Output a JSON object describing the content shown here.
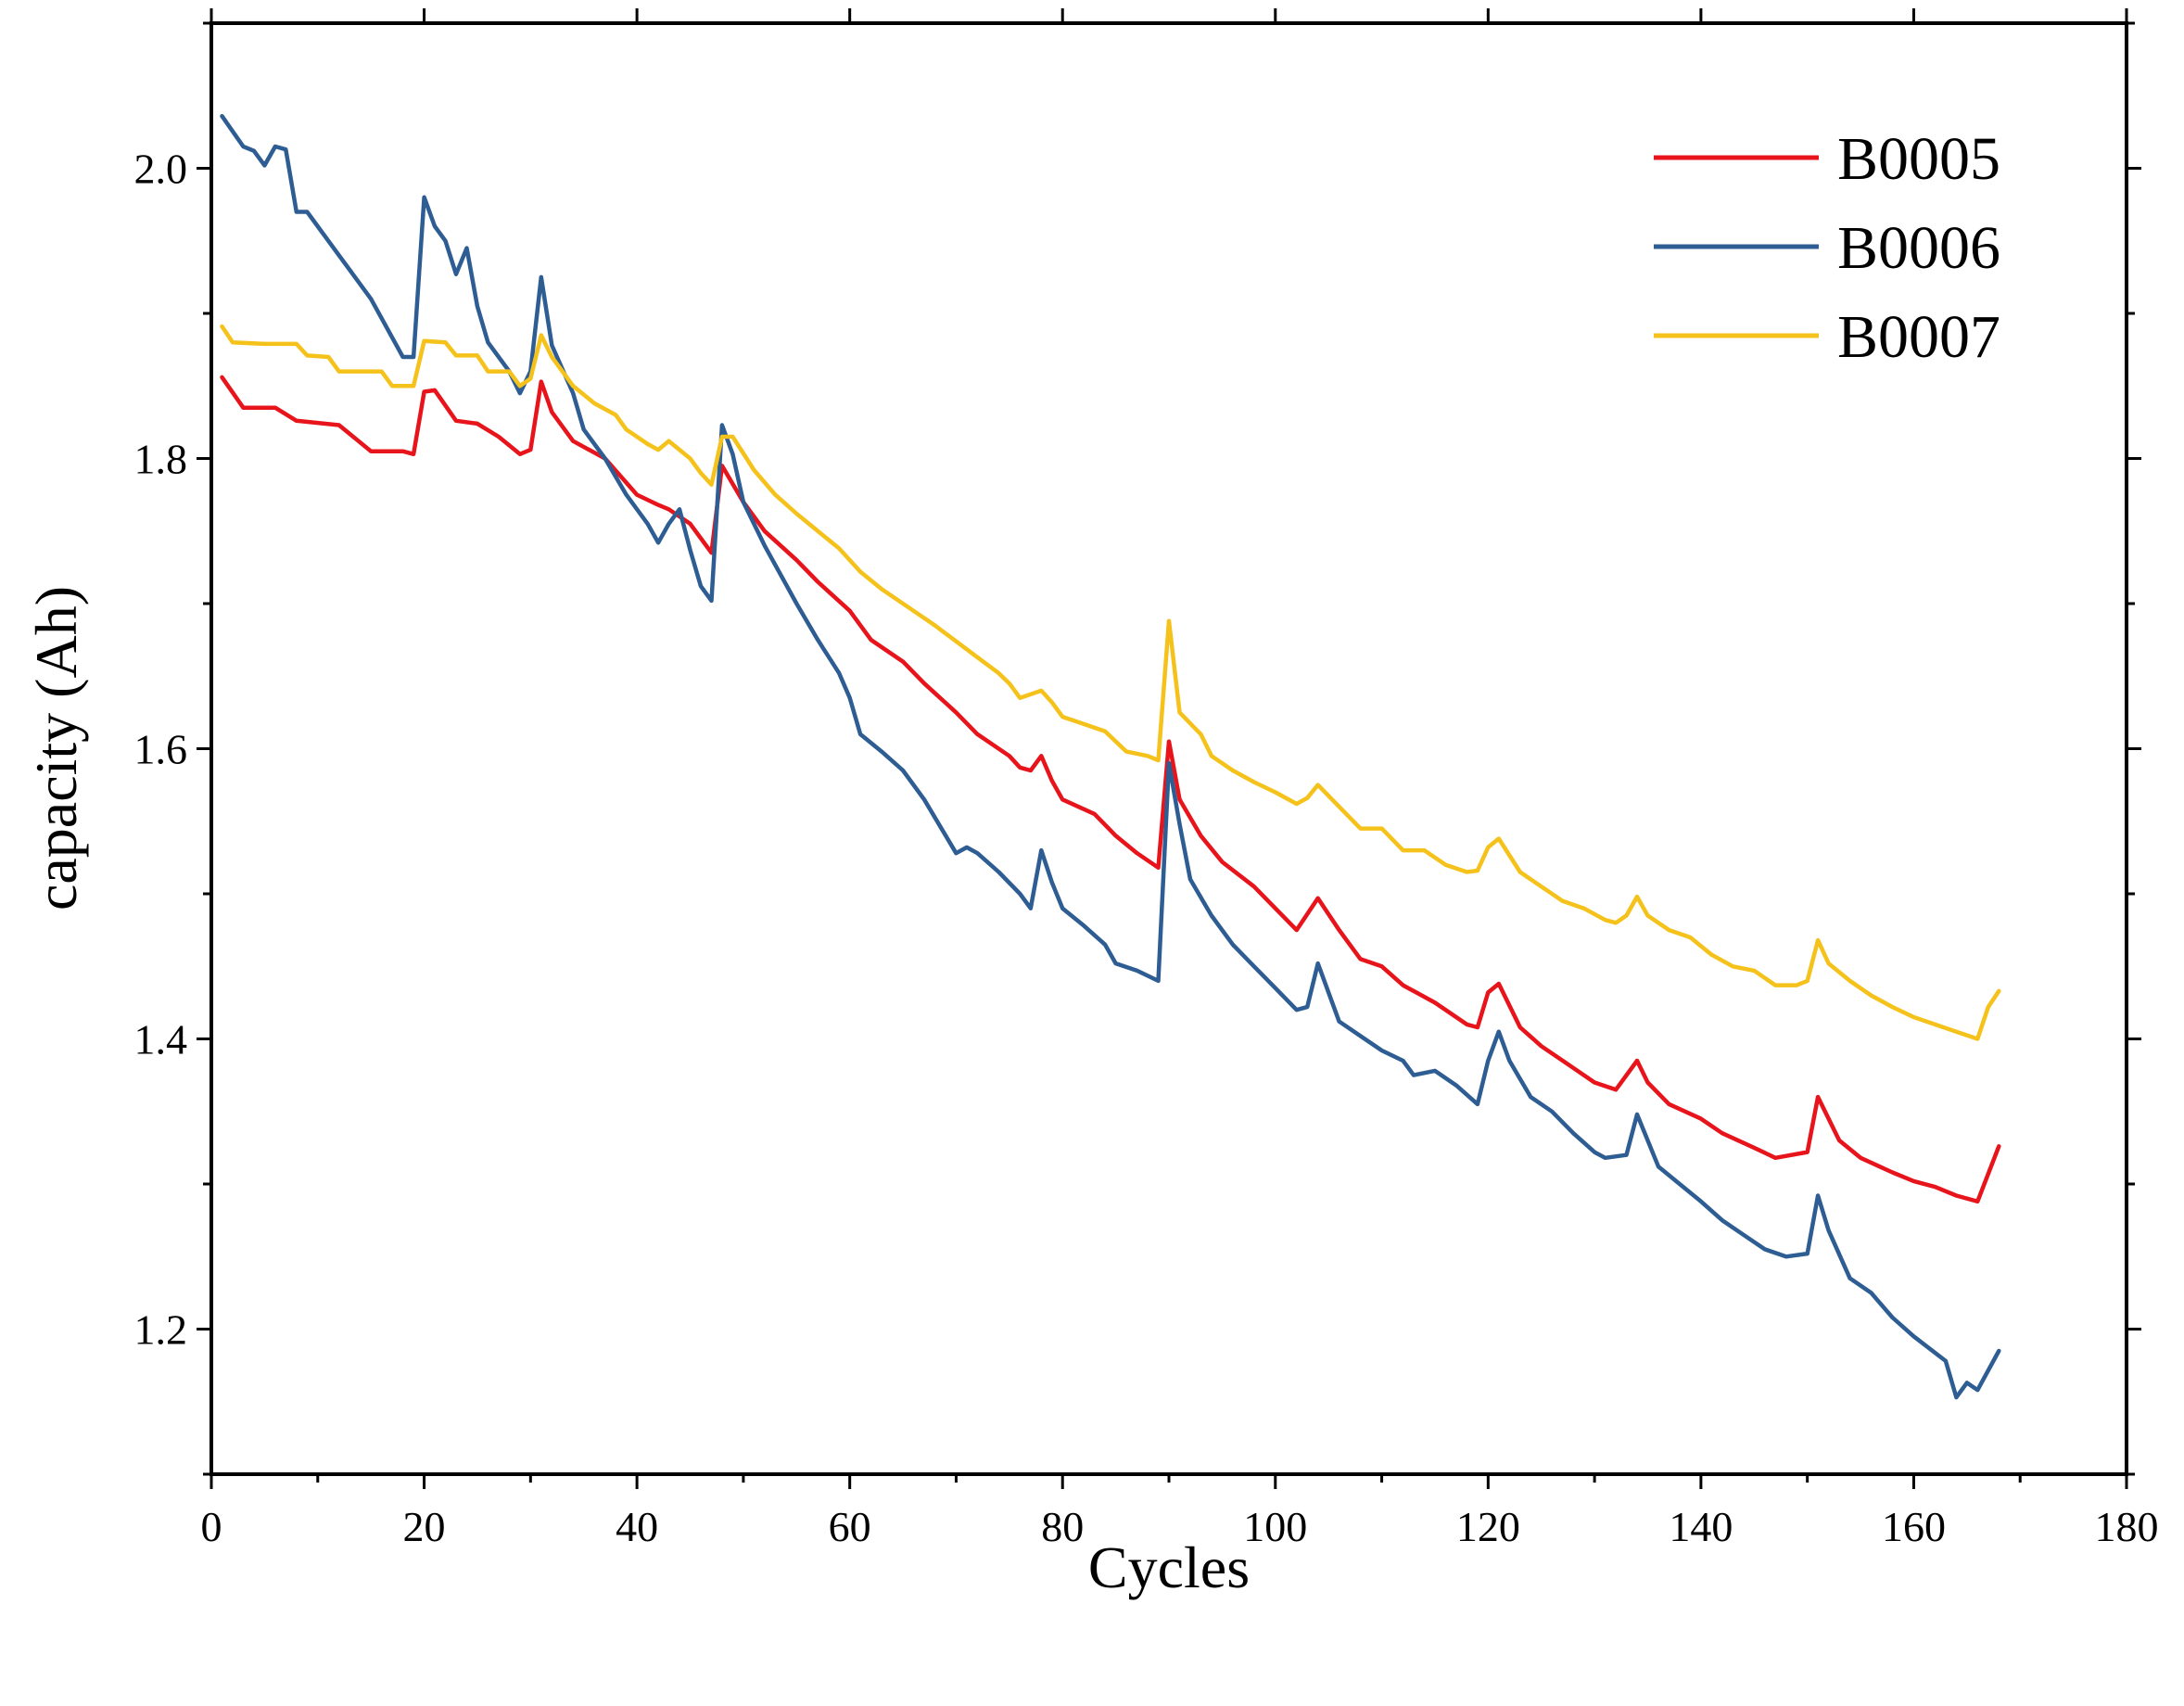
{
  "chart_data": {
    "type": "line",
    "title": "",
    "xlabel": "Cycles",
    "ylabel": "capacity (Ah)",
    "xlim": [
      0,
      180
    ],
    "ylim": [
      1.1,
      2.1
    ],
    "x_ticks": [
      0,
      20,
      40,
      60,
      80,
      100,
      120,
      140,
      160,
      180
    ],
    "y_ticks": [
      1.2,
      1.4,
      1.6,
      1.8,
      2.0
    ],
    "x_tick_labels": [
      "0",
      "20",
      "40",
      "60",
      "80",
      "100",
      "120",
      "140",
      "160",
      "180"
    ],
    "y_tick_labels": [
      "1.2",
      "1.4",
      "1.6",
      "1.8",
      "2.0"
    ],
    "grid": false,
    "legend_position": "top-right",
    "series": [
      {
        "name": "B0005",
        "color": "#e8141c",
        "points": [
          [
            1,
            1.856
          ],
          [
            3,
            1.835
          ],
          [
            6,
            1.835
          ],
          [
            8,
            1.826
          ],
          [
            12,
            1.823
          ],
          [
            15,
            1.805
          ],
          [
            18,
            1.805
          ],
          [
            19,
            1.803
          ],
          [
            20,
            1.846
          ],
          [
            21,
            1.847
          ],
          [
            23,
            1.826
          ],
          [
            25,
            1.824
          ],
          [
            27,
            1.815
          ],
          [
            29,
            1.803
          ],
          [
            30,
            1.806
          ],
          [
            31,
            1.853
          ],
          [
            32,
            1.832
          ],
          [
            34,
            1.812
          ],
          [
            37,
            1.8
          ],
          [
            40,
            1.775
          ],
          [
            42,
            1.768
          ],
          [
            43,
            1.765
          ],
          [
            45,
            1.755
          ],
          [
            47,
            1.735
          ],
          [
            48,
            1.795
          ],
          [
            50,
            1.77
          ],
          [
            52,
            1.75
          ],
          [
            55,
            1.73
          ],
          [
            57,
            1.715
          ],
          [
            60,
            1.695
          ],
          [
            62,
            1.675
          ],
          [
            65,
            1.66
          ],
          [
            67,
            1.645
          ],
          [
            70,
            1.625
          ],
          [
            72,
            1.61
          ],
          [
            75,
            1.595
          ],
          [
            76,
            1.587
          ],
          [
            77,
            1.585
          ],
          [
            78,
            1.595
          ],
          [
            79,
            1.578
          ],
          [
            80,
            1.565
          ],
          [
            83,
            1.555
          ],
          [
            85,
            1.54
          ],
          [
            87,
            1.528
          ],
          [
            89,
            1.518
          ],
          [
            90,
            1.605
          ],
          [
            91,
            1.565
          ],
          [
            93,
            1.54
          ],
          [
            95,
            1.522
          ],
          [
            98,
            1.505
          ],
          [
            100,
            1.49
          ],
          [
            102,
            1.475
          ],
          [
            104,
            1.497
          ],
          [
            106,
            1.475
          ],
          [
            108,
            1.455
          ],
          [
            110,
            1.45
          ],
          [
            112,
            1.437
          ],
          [
            115,
            1.425
          ],
          [
            118,
            1.41
          ],
          [
            119,
            1.408
          ],
          [
            120,
            1.432
          ],
          [
            121,
            1.438
          ],
          [
            123,
            1.408
          ],
          [
            125,
            1.395
          ],
          [
            128,
            1.38
          ],
          [
            130,
            1.37
          ],
          [
            132,
            1.365
          ],
          [
            134,
            1.385
          ],
          [
            135,
            1.37
          ],
          [
            137,
            1.355
          ],
          [
            140,
            1.345
          ],
          [
            142,
            1.335
          ],
          [
            145,
            1.325
          ],
          [
            147,
            1.318
          ],
          [
            150,
            1.322
          ],
          [
            151,
            1.36
          ],
          [
            153,
            1.33
          ],
          [
            155,
            1.318
          ],
          [
            158,
            1.308
          ],
          [
            160,
            1.302
          ],
          [
            162,
            1.298
          ],
          [
            164,
            1.292
          ],
          [
            166,
            1.288
          ],
          [
            168,
            1.326
          ]
        ]
      },
      {
        "name": "B0006",
        "color": "#2e5d93",
        "points": [
          [
            1,
            2.036
          ],
          [
            3,
            2.015
          ],
          [
            4,
            2.012
          ],
          [
            5,
            2.002
          ],
          [
            6,
            2.015
          ],
          [
            7,
            2.013
          ],
          [
            8,
            1.97
          ],
          [
            9,
            1.97
          ],
          [
            12,
            1.94
          ],
          [
            15,
            1.91
          ],
          [
            18,
            1.87
          ],
          [
            19,
            1.87
          ],
          [
            20,
            1.98
          ],
          [
            21,
            1.96
          ],
          [
            22,
            1.95
          ],
          [
            23,
            1.927
          ],
          [
            24,
            1.945
          ],
          [
            25,
            1.905
          ],
          [
            26,
            1.88
          ],
          [
            28,
            1.86
          ],
          [
            29,
            1.845
          ],
          [
            30,
            1.86
          ],
          [
            31,
            1.925
          ],
          [
            32,
            1.878
          ],
          [
            34,
            1.845
          ],
          [
            35,
            1.82
          ],
          [
            37,
            1.8
          ],
          [
            39,
            1.775
          ],
          [
            41,
            1.755
          ],
          [
            42,
            1.742
          ],
          [
            43,
            1.755
          ],
          [
            44,
            1.765
          ],
          [
            45,
            1.737
          ],
          [
            46,
            1.712
          ],
          [
            47,
            1.702
          ],
          [
            48,
            1.823
          ],
          [
            49,
            1.803
          ],
          [
            50,
            1.77
          ],
          [
            52,
            1.74
          ],
          [
            55,
            1.7
          ],
          [
            57,
            1.675
          ],
          [
            59,
            1.652
          ],
          [
            60,
            1.635
          ],
          [
            61,
            1.61
          ],
          [
            63,
            1.598
          ],
          [
            65,
            1.585
          ],
          [
            67,
            1.565
          ],
          [
            70,
            1.528
          ],
          [
            71,
            1.532
          ],
          [
            72,
            1.528
          ],
          [
            74,
            1.515
          ],
          [
            76,
            1.5
          ],
          [
            77,
            1.49
          ],
          [
            78,
            1.53
          ],
          [
            79,
            1.508
          ],
          [
            80,
            1.49
          ],
          [
            82,
            1.478
          ],
          [
            84,
            1.465
          ],
          [
            85,
            1.452
          ],
          [
            87,
            1.447
          ],
          [
            89,
            1.44
          ],
          [
            90,
            1.59
          ],
          [
            91,
            1.548
          ],
          [
            92,
            1.51
          ],
          [
            94,
            1.485
          ],
          [
            96,
            1.465
          ],
          [
            98,
            1.45
          ],
          [
            100,
            1.435
          ],
          [
            102,
            1.42
          ],
          [
            103,
            1.422
          ],
          [
            104,
            1.452
          ],
          [
            106,
            1.412
          ],
          [
            108,
            1.402
          ],
          [
            110,
            1.392
          ],
          [
            112,
            1.385
          ],
          [
            113,
            1.375
          ],
          [
            115,
            1.378
          ],
          [
            117,
            1.368
          ],
          [
            119,
            1.355
          ],
          [
            120,
            1.385
          ],
          [
            121,
            1.405
          ],
          [
            122,
            1.385
          ],
          [
            124,
            1.36
          ],
          [
            126,
            1.35
          ],
          [
            128,
            1.335
          ],
          [
            130,
            1.322
          ],
          [
            131,
            1.318
          ],
          [
            133,
            1.32
          ],
          [
            134,
            1.348
          ],
          [
            136,
            1.312
          ],
          [
            138,
            1.3
          ],
          [
            140,
            1.288
          ],
          [
            142,
            1.275
          ],
          [
            144,
            1.265
          ],
          [
            146,
            1.255
          ],
          [
            148,
            1.25
          ],
          [
            150,
            1.252
          ],
          [
            151,
            1.292
          ],
          [
            152,
            1.268
          ],
          [
            154,
            1.235
          ],
          [
            156,
            1.225
          ],
          [
            158,
            1.208
          ],
          [
            160,
            1.195
          ],
          [
            163,
            1.178
          ],
          [
            164,
            1.153
          ],
          [
            165,
            1.163
          ],
          [
            166,
            1.158
          ],
          [
            168,
            1.185
          ]
        ]
      },
      {
        "name": "B0007",
        "color": "#f5c21b",
        "points": [
          [
            1,
            1.891
          ],
          [
            2,
            1.88
          ],
          [
            5,
            1.879
          ],
          [
            8,
            1.879
          ],
          [
            9,
            1.871
          ],
          [
            11,
            1.87
          ],
          [
            12,
            1.86
          ],
          [
            16,
            1.86
          ],
          [
            17,
            1.85
          ],
          [
            19,
            1.85
          ],
          [
            20,
            1.881
          ],
          [
            22,
            1.88
          ],
          [
            23,
            1.871
          ],
          [
            25,
            1.871
          ],
          [
            26,
            1.86
          ],
          [
            28,
            1.86
          ],
          [
            29,
            1.85
          ],
          [
            30,
            1.855
          ],
          [
            31,
            1.885
          ],
          [
            32,
            1.87
          ],
          [
            34,
            1.85
          ],
          [
            36,
            1.838
          ],
          [
            38,
            1.83
          ],
          [
            39,
            1.82
          ],
          [
            41,
            1.81
          ],
          [
            42,
            1.806
          ],
          [
            43,
            1.812
          ],
          [
            45,
            1.8
          ],
          [
            46,
            1.79
          ],
          [
            47,
            1.782
          ],
          [
            48,
            1.815
          ],
          [
            49,
            1.815
          ],
          [
            51,
            1.792
          ],
          [
            53,
            1.775
          ],
          [
            55,
            1.762
          ],
          [
            57,
            1.75
          ],
          [
            59,
            1.738
          ],
          [
            61,
            1.722
          ],
          [
            63,
            1.71
          ],
          [
            64,
            1.705
          ],
          [
            66,
            1.695
          ],
          [
            68,
            1.685
          ],
          [
            70,
            1.674
          ],
          [
            72,
            1.663
          ],
          [
            74,
            1.652
          ],
          [
            75,
            1.645
          ],
          [
            76,
            1.635
          ],
          [
            78,
            1.64
          ],
          [
            79,
            1.632
          ],
          [
            80,
            1.622
          ],
          [
            82,
            1.617
          ],
          [
            84,
            1.612
          ],
          [
            86,
            1.598
          ],
          [
            88,
            1.595
          ],
          [
            89,
            1.592
          ],
          [
            90,
            1.688
          ],
          [
            91,
            1.625
          ],
          [
            93,
            1.61
          ],
          [
            94,
            1.595
          ],
          [
            96,
            1.585
          ],
          [
            98,
            1.577
          ],
          [
            100,
            1.57
          ],
          [
            102,
            1.562
          ],
          [
            103,
            1.566
          ],
          [
            104,
            1.575
          ],
          [
            106,
            1.56
          ],
          [
            108,
            1.545
          ],
          [
            110,
            1.545
          ],
          [
            112,
            1.53
          ],
          [
            114,
            1.53
          ],
          [
            116,
            1.52
          ],
          [
            118,
            1.515
          ],
          [
            119,
            1.516
          ],
          [
            120,
            1.532
          ],
          [
            121,
            1.538
          ],
          [
            123,
            1.515
          ],
          [
            125,
            1.505
          ],
          [
            127,
            1.495
          ],
          [
            129,
            1.49
          ],
          [
            131,
            1.482
          ],
          [
            132,
            1.48
          ],
          [
            133,
            1.485
          ],
          [
            134,
            1.498
          ],
          [
            135,
            1.485
          ],
          [
            137,
            1.475
          ],
          [
            139,
            1.47
          ],
          [
            141,
            1.458
          ],
          [
            143,
            1.45
          ],
          [
            145,
            1.447
          ],
          [
            147,
            1.437
          ],
          [
            149,
            1.437
          ],
          [
            150,
            1.44
          ],
          [
            151,
            1.468
          ],
          [
            152,
            1.452
          ],
          [
            154,
            1.44
          ],
          [
            156,
            1.43
          ],
          [
            158,
            1.422
          ],
          [
            160,
            1.415
          ],
          [
            162,
            1.41
          ],
          [
            164,
            1.405
          ],
          [
            166,
            1.4
          ],
          [
            167,
            1.422
          ],
          [
            168,
            1.433
          ]
        ]
      }
    ]
  }
}
